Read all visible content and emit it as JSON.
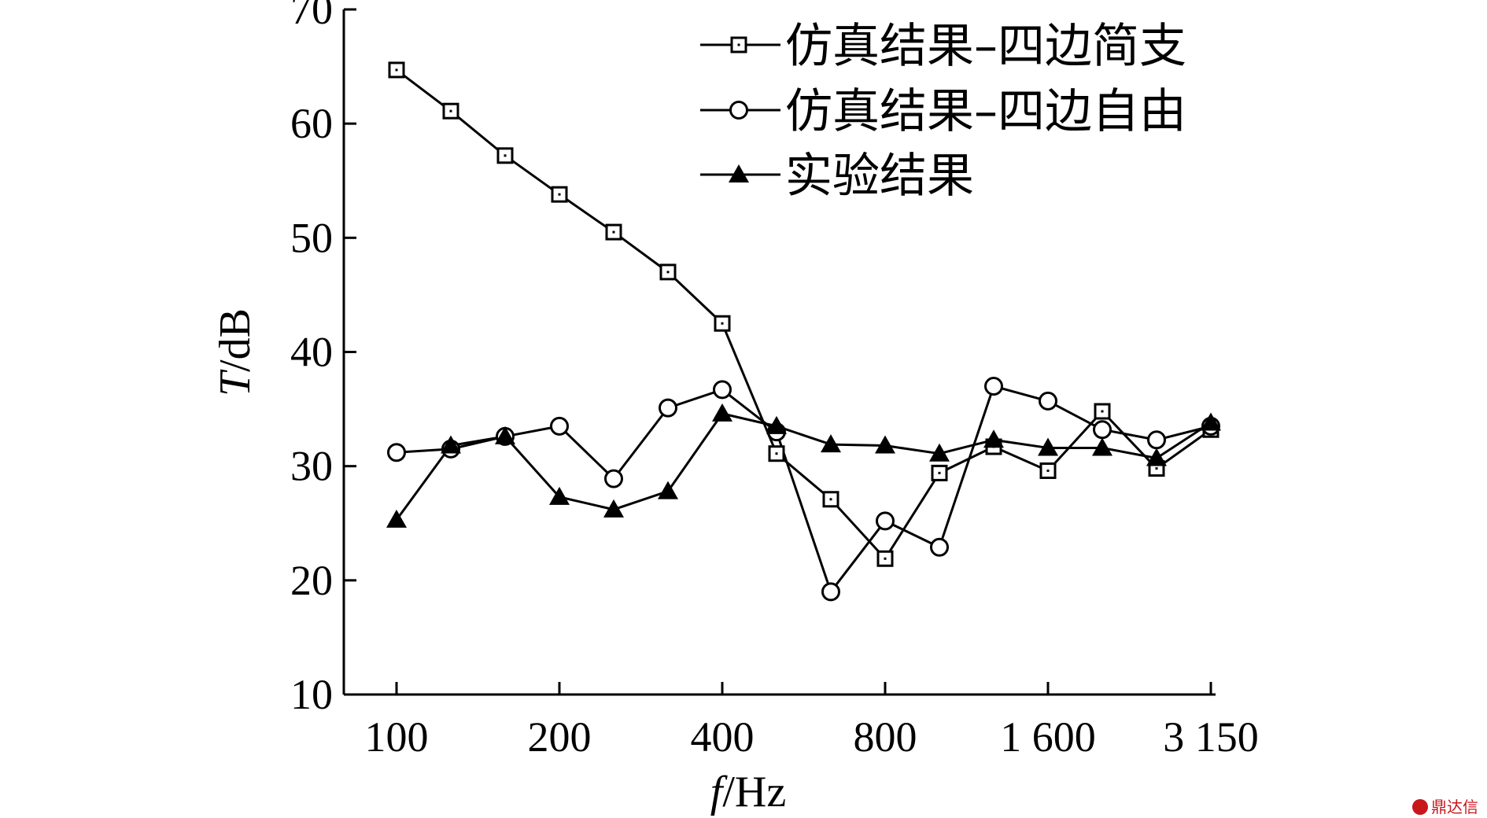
{
  "chart_data": {
    "type": "line",
    "title": "",
    "xlabel": {
      "var": "f",
      "unit": "/Hz"
    },
    "ylabel": {
      "var": "T",
      "unit": "/dB"
    },
    "ylim": [
      10,
      70
    ],
    "yticks": [
      "10",
      "20",
      "30",
      "40",
      "50",
      "60",
      "70"
    ],
    "x": [
      "100",
      "125",
      "160",
      "200",
      "250",
      "315",
      "400",
      "500",
      "630",
      "800",
      "1000",
      "1250",
      "1600",
      "2000",
      "2500",
      "3150"
    ],
    "xtick_labels": [
      "100",
      "200",
      "400",
      "800",
      "1 600",
      "3 150"
    ],
    "grid": false,
    "legend_position": "top-right",
    "series": [
      {
        "name": "仿真结果–四边简支",
        "marker": "square",
        "values": [
          64.7,
          61.1,
          57.2,
          53.8,
          50.5,
          47.0,
          42.5,
          31.1,
          27.1,
          21.9,
          29.4,
          31.7,
          29.6,
          34.8,
          29.8,
          33.2
        ]
      },
      {
        "name": "仿真结果–四边自由",
        "marker": "circle",
        "values": [
          31.2,
          31.5,
          32.6,
          33.5,
          28.9,
          35.1,
          36.7,
          33.0,
          19.0,
          25.2,
          22.9,
          37.0,
          35.7,
          33.2,
          32.3,
          33.5
        ]
      },
      {
        "name": "实验结果",
        "marker": "triangle",
        "values": [
          25.3,
          31.8,
          32.6,
          27.3,
          26.2,
          27.8,
          34.6,
          33.5,
          31.9,
          31.8,
          31.1,
          32.3,
          31.6,
          31.6,
          30.7,
          33.8
        ]
      }
    ]
  },
  "watermark": {
    "text": "鼎达信"
  }
}
